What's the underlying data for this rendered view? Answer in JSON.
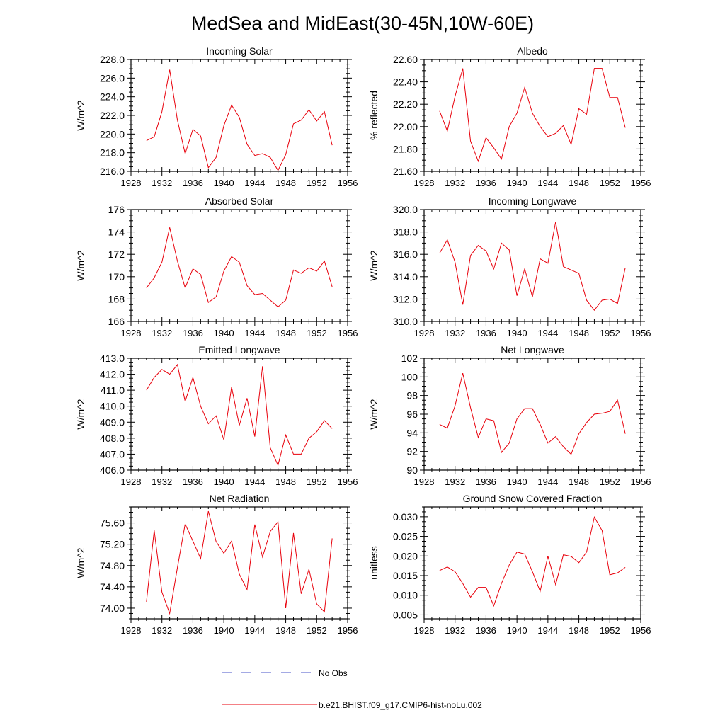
{
  "figure": {
    "title": "MedSea and MidEast(30-45N,10W-60E)"
  },
  "legend": {
    "entries": [
      {
        "label": "No Obs",
        "color": "#4a55c8",
        "style": "dashed"
      },
      {
        "label": "b.e21.BHIST.f09_g17.CMIP6-hist-noLu.002",
        "color": "#e8000b",
        "style": "solid"
      }
    ]
  },
  "chart_data": [
    {
      "type": "line",
      "title": "Incoming Solar",
      "ylabel": "W/m^2",
      "xlim": [
        1928,
        1956
      ],
      "xticks": [
        "1928",
        "1932",
        "1936",
        "1940",
        "1944",
        "1948",
        "1952",
        "1956"
      ],
      "ylim": [
        216,
        228
      ],
      "yticks": [
        "216.0",
        "218.0",
        "220.0",
        "222.0",
        "224.0",
        "226.0",
        "228.0"
      ],
      "x": [
        1930,
        1931,
        1932,
        1933,
        1934,
        1935,
        1936,
        1937,
        1938,
        1939,
        1940,
        1941,
        1942,
        1943,
        1944,
        1945,
        1946,
        1947,
        1948,
        1949,
        1950,
        1951,
        1952,
        1953,
        1954
      ],
      "series": [
        {
          "name": "b.e21.BHIST.f09_g17.CMIP6-hist-noLu.002",
          "color": "#e8000b",
          "values": [
            219.3,
            219.7,
            222.4,
            226.9,
            221.5,
            217.9,
            220.5,
            219.8,
            216.4,
            217.5,
            220.9,
            223.1,
            221.8,
            218.9,
            217.7,
            217.9,
            217.5,
            216.1,
            217.8,
            221.1,
            221.5,
            222.6,
            221.4,
            222.4,
            218.8
          ]
        }
      ]
    },
    {
      "type": "line",
      "title": "Albedo",
      "ylabel": "% reflected",
      "xlim": [
        1928,
        1956
      ],
      "xticks": [
        "1928",
        "1932",
        "1936",
        "1940",
        "1944",
        "1948",
        "1952",
        "1956"
      ],
      "ylim": [
        21.6,
        22.6
      ],
      "yticks": [
        "21.60",
        "21.80",
        "22.00",
        "22.20",
        "22.40",
        "22.60"
      ],
      "x": [
        1930,
        1931,
        1932,
        1933,
        1934,
        1935,
        1936,
        1937,
        1938,
        1939,
        1940,
        1941,
        1942,
        1943,
        1944,
        1945,
        1946,
        1947,
        1948,
        1949,
        1950,
        1951,
        1952,
        1953,
        1954
      ],
      "series": [
        {
          "name": "b.e21.BHIST.f09_g17.CMIP6-hist-noLu.002",
          "color": "#e8000b",
          "values": [
            22.14,
            21.96,
            22.27,
            22.52,
            21.87,
            21.69,
            21.9,
            21.81,
            21.71,
            22.0,
            22.12,
            22.35,
            22.12,
            22.0,
            21.91,
            21.94,
            22.01,
            21.84,
            22.16,
            22.11,
            22.52,
            22.52,
            22.26,
            22.26,
            21.99
          ]
        }
      ]
    },
    {
      "type": "line",
      "title": "Absorbed Solar",
      "ylabel": "W/m^2",
      "xlim": [
        1928,
        1956
      ],
      "xticks": [
        "1928",
        "1932",
        "1936",
        "1940",
        "1944",
        "1948",
        "1952",
        "1956"
      ],
      "ylim": [
        166,
        176
      ],
      "yticks": [
        "166",
        "168",
        "170",
        "172",
        "174",
        "176"
      ],
      "x": [
        1930,
        1931,
        1932,
        1933,
        1934,
        1935,
        1936,
        1937,
        1938,
        1939,
        1940,
        1941,
        1942,
        1943,
        1944,
        1945,
        1946,
        1947,
        1948,
        1949,
        1950,
        1951,
        1952,
        1953,
        1954
      ],
      "series": [
        {
          "name": "b.e21.BHIST.f09_g17.CMIP6-hist-noLu.002",
          "color": "#e8000b",
          "values": [
            169.0,
            169.9,
            171.3,
            174.4,
            171.4,
            169.0,
            170.7,
            170.2,
            167.7,
            168.2,
            170.5,
            171.8,
            171.3,
            169.2,
            168.4,
            168.5,
            167.9,
            167.3,
            167.9,
            170.6,
            170.3,
            170.8,
            170.5,
            171.4,
            169.1
          ]
        }
      ]
    },
    {
      "type": "line",
      "title": "Incoming Longwave",
      "ylabel": "W/m^2",
      "xlim": [
        1928,
        1956
      ],
      "xticks": [
        "1928",
        "1932",
        "1936",
        "1940",
        "1944",
        "1948",
        "1952",
        "1956"
      ],
      "ylim": [
        310,
        320
      ],
      "yticks": [
        "310.0",
        "312.0",
        "314.0",
        "316.0",
        "318.0",
        "320.0"
      ],
      "x": [
        1930,
        1931,
        1932,
        1933,
        1934,
        1935,
        1936,
        1937,
        1938,
        1939,
        1940,
        1941,
        1942,
        1943,
        1944,
        1945,
        1946,
        1947,
        1948,
        1949,
        1950,
        1951,
        1952,
        1953,
        1954
      ],
      "series": [
        {
          "name": "b.e21.BHIST.f09_g17.CMIP6-hist-noLu.002",
          "color": "#e8000b",
          "values": [
            316.1,
            317.3,
            315.3,
            311.5,
            315.9,
            316.8,
            316.3,
            314.7,
            317.0,
            316.4,
            312.3,
            314.7,
            312.2,
            315.6,
            315.2,
            318.9,
            314.9,
            314.6,
            314.3,
            311.9,
            311.0,
            311.9,
            312.0,
            311.6,
            314.8
          ]
        }
      ]
    },
    {
      "type": "line",
      "title": "Emitted Longwave",
      "ylabel": "W/m^2",
      "xlim": [
        1928,
        1956
      ],
      "xticks": [
        "1928",
        "1932",
        "1936",
        "1940",
        "1944",
        "1948",
        "1952",
        "1956"
      ],
      "ylim": [
        406,
        413
      ],
      "yticks": [
        "406.0",
        "407.0",
        "408.0",
        "409.0",
        "410.0",
        "411.0",
        "412.0",
        "413.0"
      ],
      "x": [
        1930,
        1931,
        1932,
        1933,
        1934,
        1935,
        1936,
        1937,
        1938,
        1939,
        1940,
        1941,
        1942,
        1943,
        1944,
        1945,
        1946,
        1947,
        1948,
        1949,
        1950,
        1951,
        1952,
        1953,
        1954
      ],
      "series": [
        {
          "name": "b.e21.BHIST.f09_g17.CMIP6-hist-noLu.002",
          "color": "#e8000b",
          "values": [
            411.0,
            411.8,
            412.3,
            412.0,
            412.6,
            410.3,
            411.8,
            410.0,
            408.9,
            409.4,
            407.9,
            411.2,
            408.8,
            410.5,
            408.1,
            412.5,
            407.4,
            406.3,
            408.2,
            407.0,
            407.0,
            408.0,
            408.4,
            409.1,
            408.6
          ]
        }
      ]
    },
    {
      "type": "line",
      "title": "Net Longwave",
      "ylabel": "W/m^2",
      "xlim": [
        1928,
        1956
      ],
      "xticks": [
        "1928",
        "1932",
        "1936",
        "1940",
        "1944",
        "1948",
        "1952",
        "1956"
      ],
      "ylim": [
        90,
        102
      ],
      "yticks": [
        "90",
        "92",
        "94",
        "96",
        "98",
        "100",
        "102"
      ],
      "x": [
        1930,
        1931,
        1932,
        1933,
        1934,
        1935,
        1936,
        1937,
        1938,
        1939,
        1940,
        1941,
        1942,
        1943,
        1944,
        1945,
        1946,
        1947,
        1948,
        1949,
        1950,
        1951,
        1952,
        1953,
        1954
      ],
      "series": [
        {
          "name": "b.e21.BHIST.f09_g17.CMIP6-hist-noLu.002",
          "color": "#e8000b",
          "values": [
            94.9,
            94.5,
            96.9,
            100.4,
            96.7,
            93.5,
            95.5,
            95.3,
            91.9,
            92.9,
            95.5,
            96.6,
            96.6,
            94.9,
            92.9,
            93.6,
            92.5,
            91.7,
            93.9,
            95.1,
            96.0,
            96.1,
            96.3,
            97.5,
            93.9
          ]
        }
      ]
    },
    {
      "type": "line",
      "title": "Net Radiation",
      "ylabel": "W/m^2",
      "xlim": [
        1928,
        1956
      ],
      "xticks": [
        "1928",
        "1932",
        "1936",
        "1940",
        "1944",
        "1948",
        "1952",
        "1956"
      ],
      "ylim": [
        73.8,
        75.9
      ],
      "yticks": [
        "74.00",
        "74.40",
        "74.80",
        "75.20",
        "75.60"
      ],
      "ytickvals": [
        74.0,
        74.4,
        74.8,
        75.2,
        75.6
      ],
      "x": [
        1930,
        1931,
        1932,
        1933,
        1934,
        1935,
        1936,
        1937,
        1938,
        1939,
        1940,
        1941,
        1942,
        1943,
        1944,
        1945,
        1946,
        1947,
        1948,
        1949,
        1950,
        1951,
        1952,
        1953,
        1954
      ],
      "series": [
        {
          "name": "b.e21.BHIST.f09_g17.CMIP6-hist-noLu.002",
          "color": "#e8000b",
          "values": [
            74.12,
            75.46,
            74.3,
            73.9,
            74.76,
            75.58,
            75.26,
            74.93,
            75.82,
            75.25,
            75.03,
            75.26,
            74.64,
            74.35,
            75.57,
            74.96,
            75.44,
            75.62,
            74.0,
            75.41,
            74.27,
            74.73,
            74.08,
            73.93,
            75.31
          ]
        }
      ]
    },
    {
      "type": "line",
      "title": "Ground Snow Covered Fraction",
      "ylabel": "unitless",
      "xlim": [
        1928,
        1956
      ],
      "xticks": [
        "1928",
        "1932",
        "1936",
        "1940",
        "1944",
        "1948",
        "1952",
        "1956"
      ],
      "ylim": [
        0.004,
        0.0325
      ],
      "yticks": [
        "0.005",
        "0.010",
        "0.015",
        "0.020",
        "0.025",
        "0.030"
      ],
      "ytickvals": [
        0.005,
        0.01,
        0.015,
        0.02,
        0.025,
        0.03
      ],
      "x": [
        1930,
        1931,
        1932,
        1933,
        1934,
        1935,
        1936,
        1937,
        1938,
        1939,
        1940,
        1941,
        1942,
        1943,
        1944,
        1945,
        1946,
        1947,
        1948,
        1949,
        1950,
        1951,
        1952,
        1953,
        1954
      ],
      "series": [
        {
          "name": "b.e21.BHIST.f09_g17.CMIP6-hist-noLu.002",
          "color": "#e8000b",
          "values": [
            0.0163,
            0.0172,
            0.016,
            0.013,
            0.0095,
            0.012,
            0.012,
            0.0073,
            0.013,
            0.0177,
            0.021,
            0.0205,
            0.016,
            0.011,
            0.02,
            0.0127,
            0.0203,
            0.0199,
            0.0183,
            0.021,
            0.0299,
            0.0265,
            0.0152,
            0.0157,
            0.0171
          ]
        }
      ]
    }
  ]
}
